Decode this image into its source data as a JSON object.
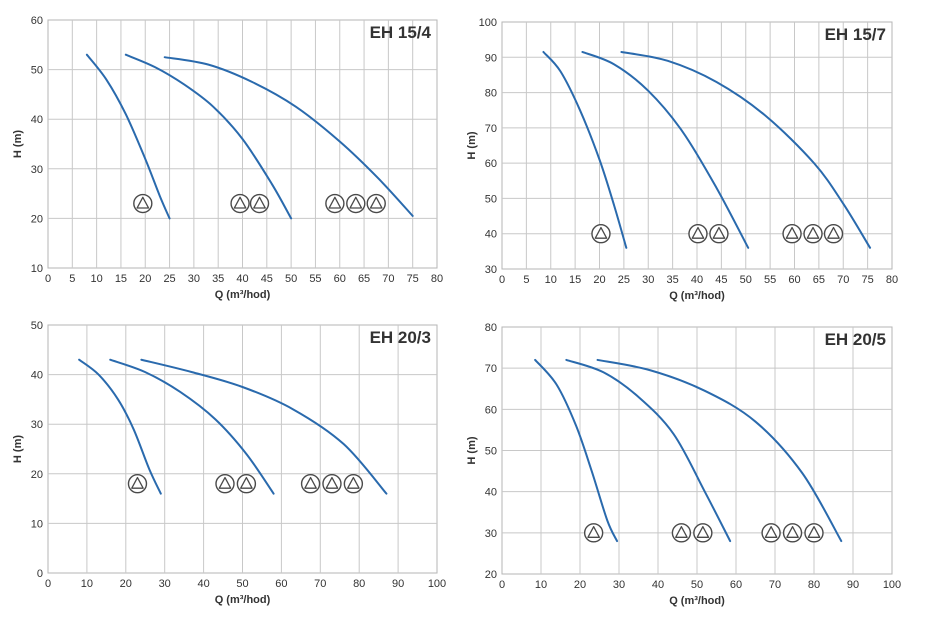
{
  "chart_data": [
    {
      "type": "line",
      "title": "EH 15/4",
      "xlabel": "Q (m³/hod)",
      "ylabel": "H (m)",
      "xlim": [
        0,
        80
      ],
      "ylim": [
        10,
        60
      ],
      "xticks": [
        0,
        5,
        10,
        15,
        20,
        25,
        30,
        35,
        40,
        45,
        50,
        55,
        60,
        65,
        70,
        75,
        80
      ],
      "yticks": [
        10,
        20,
        30,
        40,
        50,
        60
      ],
      "series": [
        {
          "name": "1 pump",
          "x": [
            8,
            12,
            16,
            20,
            23,
            25
          ],
          "y": [
            53,
            48,
            41,
            32,
            24.5,
            20
          ]
        },
        {
          "name": "2 pumps",
          "x": [
            16,
            22,
            28,
            34,
            40,
            46,
            50
          ],
          "y": [
            53,
            50.5,
            47,
            42.5,
            36,
            27,
            20
          ]
        },
        {
          "name": "3 pumps",
          "x": [
            24,
            33,
            42,
            51,
            60,
            68,
            75
          ],
          "y": [
            52.5,
            51,
            47.5,
            42.5,
            35.5,
            28,
            20.5
          ]
        }
      ],
      "pump_markers": [
        {
          "count": 1,
          "centers_x": [
            19.5
          ],
          "y": 23
        },
        {
          "count": 2,
          "centers_x": [
            39.5,
            43.5
          ],
          "y": 23
        },
        {
          "count": 3,
          "centers_x": [
            59,
            63.3,
            67.5
          ],
          "y": 23
        }
      ]
    },
    {
      "type": "line",
      "title": "EH 15/7",
      "xlabel": "Q (m³/hod)",
      "ylabel": "H (m)",
      "xlim": [
        0,
        80
      ],
      "ylim": [
        30,
        100
      ],
      "xticks": [
        0,
        5,
        10,
        15,
        20,
        25,
        30,
        35,
        40,
        45,
        50,
        55,
        60,
        65,
        70,
        75,
        80
      ],
      "yticks": [
        30,
        40,
        50,
        60,
        70,
        80,
        90,
        100
      ],
      "series": [
        {
          "name": "1 pump",
          "x": [
            8.5,
            12,
            16,
            20,
            23,
            25.5
          ],
          "y": [
            91.5,
            86,
            75,
            61,
            48,
            36
          ]
        },
        {
          "name": "2 pumps",
          "x": [
            16.5,
            23,
            30,
            37,
            44,
            50.5
          ],
          "y": [
            91.5,
            88,
            80.5,
            69,
            53,
            36
          ]
        },
        {
          "name": "3 pumps",
          "x": [
            24.5,
            34,
            44,
            54,
            64,
            70,
            75.5
          ],
          "y": [
            91.5,
            89,
            83,
            73.5,
            60,
            48.5,
            36
          ]
        }
      ],
      "pump_markers": [
        {
          "count": 1,
          "centers_x": [
            20.3
          ],
          "y": 40
        },
        {
          "count": 2,
          "centers_x": [
            40.2,
            44.5
          ],
          "y": 40
        },
        {
          "count": 3,
          "centers_x": [
            59.5,
            63.8,
            68
          ],
          "y": 40
        }
      ]
    },
    {
      "type": "line",
      "title": "EH 20/3",
      "xlabel": "Q (m³/hod)",
      "ylabel": "H (m)",
      "xlim": [
        0,
        100
      ],
      "ylim": [
        0,
        50
      ],
      "xticks": [
        0,
        10,
        20,
        30,
        40,
        50,
        60,
        70,
        80,
        90,
        100
      ],
      "yticks": [
        0,
        10,
        20,
        30,
        40,
        50
      ],
      "series": [
        {
          "name": "1 pump",
          "x": [
            8,
            13,
            18,
            22,
            26,
            29
          ],
          "y": [
            43,
            40,
            35,
            29,
            21,
            16
          ]
        },
        {
          "name": "2 pumps",
          "x": [
            16,
            25,
            34,
            43,
            51,
            58
          ],
          "y": [
            43,
            40.5,
            36.5,
            31,
            24,
            16
          ]
        },
        {
          "name": "3 pumps",
          "x": [
            24,
            37,
            50,
            63,
            76,
            87
          ],
          "y": [
            43,
            40.5,
            37.5,
            33,
            26,
            16
          ]
        }
      ],
      "pump_markers": [
        {
          "count": 1,
          "centers_x": [
            23
          ],
          "y": 18
        },
        {
          "count": 2,
          "centers_x": [
            45.5,
            51
          ],
          "y": 18
        },
        {
          "count": 3,
          "centers_x": [
            67.5,
            73,
            78.5
          ],
          "y": 18
        }
      ]
    },
    {
      "type": "line",
      "title": "EH 20/5",
      "xlabel": "Q (m³/hod)",
      "ylabel": "H (m)",
      "xlim": [
        0,
        100
      ],
      "ylim": [
        20,
        80
      ],
      "xticks": [
        0,
        10,
        20,
        30,
        40,
        50,
        60,
        70,
        80,
        90,
        100
      ],
      "yticks": [
        20,
        30,
        40,
        50,
        60,
        70,
        80
      ],
      "series": [
        {
          "name": "1 pump",
          "x": [
            8.5,
            14,
            19,
            23,
            27,
            29.5
          ],
          "y": [
            72,
            66,
            56,
            45,
            33,
            28
          ]
        },
        {
          "name": "2 pumps",
          "x": [
            16.5,
            26,
            35,
            44,
            52,
            58.5
          ],
          "y": [
            72,
            69,
            63,
            54,
            40,
            28
          ]
        },
        {
          "name": "3 pumps",
          "x": [
            24.5,
            38,
            52,
            65,
            77,
            87
          ],
          "y": [
            72,
            69.5,
            64.5,
            57,
            44.5,
            28
          ]
        }
      ],
      "pump_markers": [
        {
          "count": 1,
          "centers_x": [
            23.5
          ],
          "y": 30
        },
        {
          "count": 2,
          "centers_x": [
            46,
            51.5
          ],
          "y": 30
        },
        {
          "count": 3,
          "centers_x": [
            69,
            74.5,
            80
          ],
          "y": 30
        }
      ]
    }
  ]
}
